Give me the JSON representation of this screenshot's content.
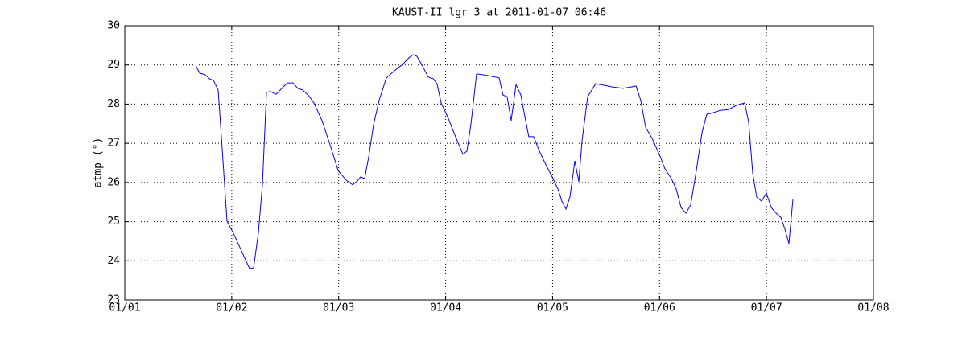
{
  "chart_data": {
    "type": "line",
    "title": "KAUST-II lgr 3 at 2011-01-07 06:46",
    "y_label": "atmp (°)",
    "xlim": [
      1,
      8
    ],
    "xticks": [
      {
        "value": 1,
        "label": "01/01"
      },
      {
        "value": 2,
        "label": "01/02"
      },
      {
        "value": 3,
        "label": "01/03"
      },
      {
        "value": 4,
        "label": "01/04"
      },
      {
        "value": 5,
        "label": "01/05"
      },
      {
        "value": 6,
        "label": "01/06"
      },
      {
        "value": 7,
        "label": "01/07"
      },
      {
        "value": 8,
        "label": "01/08"
      }
    ],
    "ylim": [
      23,
      30
    ],
    "yticks": [
      23,
      24,
      25,
      26,
      27,
      28,
      29,
      30
    ],
    "grid": true,
    "series": [
      {
        "color": "#0000ff",
        "x": [
          1.662,
          1.7,
          1.753,
          1.79,
          1.83,
          1.873,
          1.911,
          1.956,
          2.016,
          2.167,
          2.204,
          2.249,
          2.287,
          2.325,
          2.362,
          2.415,
          2.468,
          2.52,
          2.573,
          2.618,
          2.663,
          2.716,
          2.769,
          2.844,
          2.919,
          2.995,
          3.07,
          3.13,
          3.175,
          3.205,
          3.243,
          3.281,
          3.326,
          3.378,
          3.446,
          3.521,
          3.597,
          3.657,
          3.695,
          3.732,
          3.777,
          3.838,
          3.883,
          3.92,
          3.958,
          4.018,
          4.093,
          4.161,
          4.199,
          4.236,
          4.289,
          4.349,
          4.424,
          4.5,
          4.537,
          4.575,
          4.613,
          4.658,
          4.703,
          4.741,
          4.778,
          4.824,
          4.876,
          4.937,
          4.997,
          5.05,
          5.087,
          5.125,
          5.162,
          5.208,
          5.245,
          5.275,
          5.328,
          5.403,
          5.479,
          5.554,
          5.659,
          5.78,
          5.825,
          5.87,
          5.93,
          6.005,
          6.05,
          6.111,
          6.156,
          6.201,
          6.246,
          6.291,
          6.344,
          6.397,
          6.442,
          6.502,
          6.57,
          6.645,
          6.72,
          6.796,
          6.833,
          6.871,
          6.908,
          6.954,
          6.999,
          7.044,
          7.089,
          7.134,
          7.172,
          7.21,
          7.247
        ],
        "values": [
          28.99,
          28.79,
          28.75,
          28.65,
          28.6,
          28.36,
          26.86,
          25.01,
          24.7,
          23.8,
          23.82,
          24.7,
          25.94,
          28.3,
          28.32,
          28.25,
          28.4,
          28.54,
          28.54,
          28.4,
          28.36,
          28.23,
          28.03,
          27.58,
          26.96,
          26.3,
          26.06,
          25.94,
          26.04,
          26.14,
          26.1,
          26.65,
          27.47,
          28.09,
          28.67,
          28.85,
          29.01,
          29.18,
          29.26,
          29.22,
          29.01,
          28.69,
          28.65,
          28.52,
          28.03,
          27.68,
          27.17,
          26.72,
          26.8,
          27.47,
          28.77,
          28.75,
          28.71,
          28.67,
          28.23,
          28.19,
          27.58,
          28.5,
          28.23,
          27.68,
          27.17,
          27.17,
          26.8,
          26.45,
          26.14,
          25.83,
          25.52,
          25.32,
          25.63,
          26.55,
          26.02,
          27.06,
          28.19,
          28.52,
          28.48,
          28.44,
          28.4,
          28.46,
          28.09,
          27.41,
          27.13,
          26.67,
          26.35,
          26.1,
          25.83,
          25.36,
          25.22,
          25.42,
          26.3,
          27.27,
          27.74,
          27.78,
          27.84,
          27.86,
          27.97,
          28.03,
          27.54,
          26.24,
          25.63,
          25.52,
          25.73,
          25.36,
          25.22,
          25.11,
          24.81,
          24.44,
          25.57
        ]
      }
    ]
  }
}
